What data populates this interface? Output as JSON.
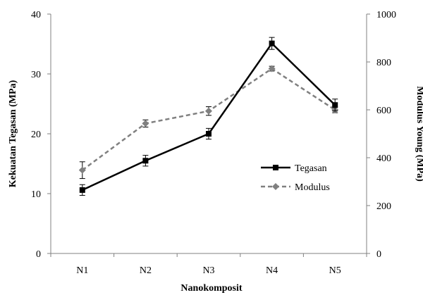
{
  "chart_data": {
    "type": "line",
    "title": "",
    "xlabel": "Nanokomposit",
    "ylabel": "Kekuatan Tegasan (MPa)",
    "y2label": "Modulus Young (MPa)",
    "categories": [
      "N1",
      "N2",
      "N3",
      "N4",
      "N5"
    ],
    "ylim": [
      0,
      40
    ],
    "y2lim": [
      0,
      1000
    ],
    "yticks": [
      0,
      10,
      20,
      30,
      40
    ],
    "y2ticks": [
      0,
      200,
      400,
      600,
      800,
      1000
    ],
    "series": [
      {
        "name": "Tegasan",
        "axis": "left",
        "values": [
          10.6,
          15.5,
          20.0,
          35.1,
          24.8
        ],
        "errors": [
          0.9,
          0.9,
          0.9,
          1.0,
          1.0
        ],
        "color": "#000000",
        "style": "solid",
        "marker": "square"
      },
      {
        "name": "Modulus",
        "axis": "right",
        "values": [
          348,
          543,
          595,
          772,
          600
        ],
        "errors": [
          35,
          15,
          18,
          10,
          12
        ],
        "color": "#808080",
        "style": "dashed",
        "marker": "diamond"
      }
    ],
    "legend": "center-right",
    "grid": false
  }
}
